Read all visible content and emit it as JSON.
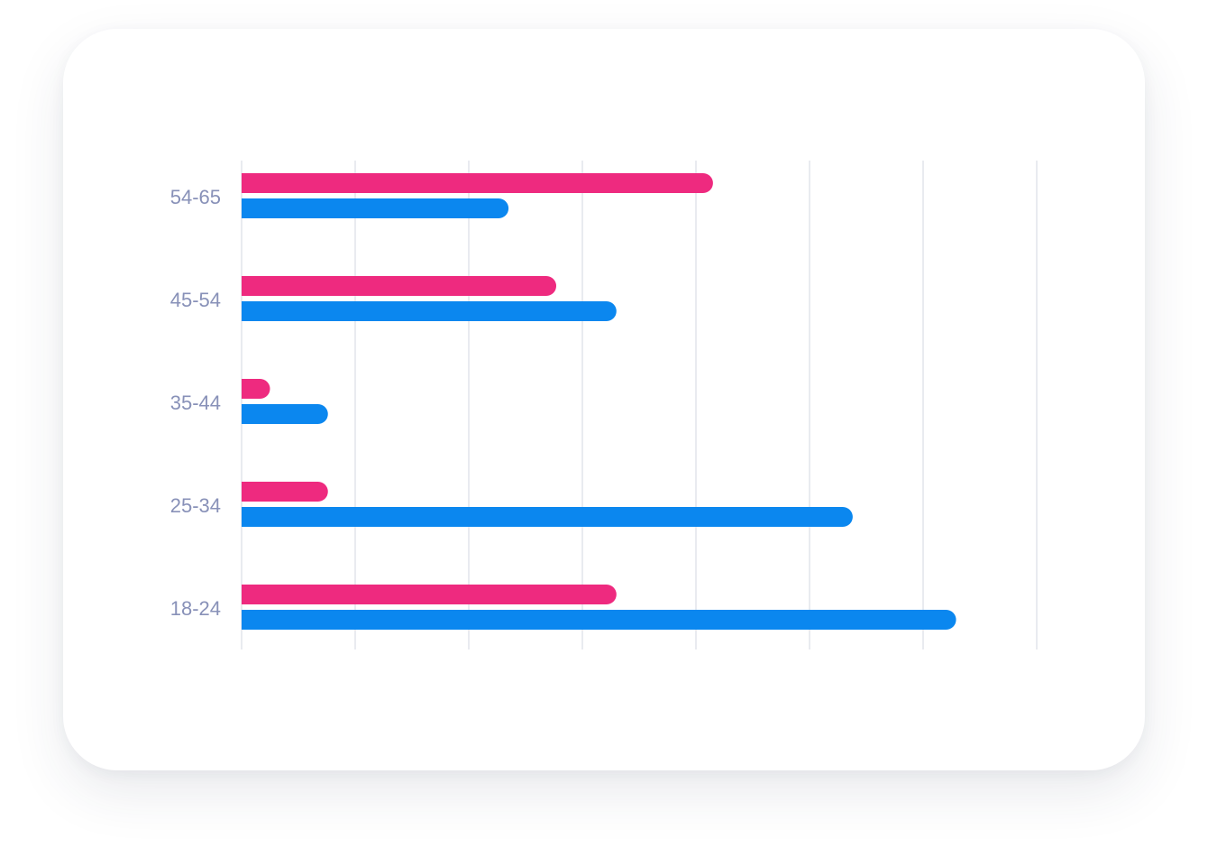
{
  "chart_data": {
    "type": "bar",
    "orientation": "horizontal",
    "categories": [
      "54-65",
      "45-54",
      "35-44",
      "25-34",
      "18-24"
    ],
    "series": [
      {
        "values": [
          4.15,
          2.77,
          0.25,
          0.76,
          3.3
        ],
        "color": "#ee2a7f"
      },
      {
        "values": [
          2.35,
          3.3,
          0.76,
          5.38,
          6.29
        ],
        "color": "#0b87ef"
      }
    ],
    "xlim": [
      0,
      7
    ],
    "grid": true,
    "legend": false
  }
}
